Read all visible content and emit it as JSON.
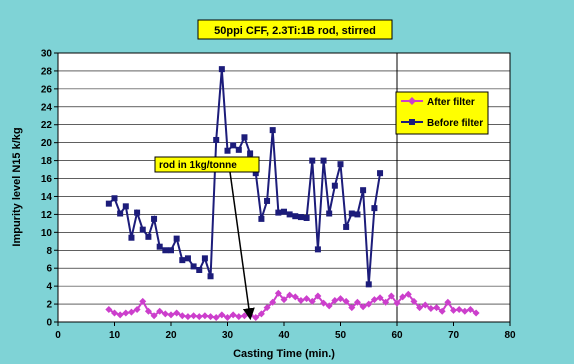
{
  "colors": {
    "background": "#7fd3d6",
    "plot_area": "#ffffff",
    "after_filter": "#cc3fcc",
    "before_filter": "#1c1c7a",
    "label_box": "#ffff00",
    "annotation_line": "#000000"
  },
  "chart_data": {
    "type": "line",
    "title": "50ppi CFF, 2.3Ti:1B rod, stirred",
    "xlabel": "Casting Time (min.)",
    "ylabel": "Impurity level N15 k/kg",
    "xlim": [
      0,
      80
    ],
    "ylim": [
      0,
      30
    ],
    "x_ticks": [
      "0",
      "10",
      "20",
      "30",
      "40",
      "50",
      "60",
      "70",
      "80"
    ],
    "y_ticks": [
      "0",
      "2",
      "4",
      "6",
      "8",
      "10",
      "12",
      "14",
      "16",
      "18",
      "20",
      "22",
      "24",
      "26",
      "28",
      "30"
    ],
    "grid": "horizontal",
    "legend_position": "right",
    "series": [
      {
        "name": "After filter",
        "marker": "diamond",
        "points": [
          [
            9,
            1.4
          ],
          [
            10,
            1.0
          ],
          [
            11,
            0.8
          ],
          [
            12,
            1.0
          ],
          [
            13,
            1.1
          ],
          [
            14,
            1.4
          ],
          [
            15,
            2.3
          ],
          [
            16,
            1.2
          ],
          [
            17,
            0.7
          ],
          [
            18,
            1.2
          ],
          [
            19,
            0.9
          ],
          [
            20,
            0.8
          ],
          [
            21,
            1.0
          ],
          [
            22,
            0.7
          ],
          [
            23,
            0.6
          ],
          [
            24,
            0.7
          ],
          [
            25,
            0.6
          ],
          [
            26,
            0.7
          ],
          [
            27,
            0.6
          ],
          [
            28,
            0.5
          ],
          [
            29,
            0.8
          ],
          [
            30,
            0.5
          ],
          [
            31,
            0.8
          ],
          [
            32,
            0.6
          ],
          [
            33,
            0.7
          ],
          [
            34,
            0.8
          ],
          [
            35,
            0.5
          ],
          [
            36,
            0.9
          ],
          [
            37,
            1.6
          ],
          [
            38,
            2.2
          ],
          [
            39,
            3.2
          ],
          [
            40,
            2.5
          ],
          [
            41,
            3.0
          ],
          [
            42,
            2.8
          ],
          [
            43,
            2.4
          ],
          [
            44,
            2.6
          ],
          [
            45,
            2.3
          ],
          [
            46,
            2.9
          ],
          [
            47,
            2.1
          ],
          [
            48,
            1.8
          ],
          [
            49,
            2.4
          ],
          [
            50,
            2.6
          ],
          [
            51,
            2.3
          ],
          [
            52,
            1.6
          ],
          [
            53,
            2.2
          ],
          [
            54,
            1.7
          ],
          [
            55,
            2.0
          ],
          [
            56,
            2.5
          ],
          [
            57,
            2.7
          ],
          [
            58,
            2.2
          ],
          [
            59,
            2.9
          ],
          [
            60,
            2.1
          ],
          [
            61,
            2.8
          ],
          [
            62,
            3.1
          ],
          [
            63,
            2.3
          ],
          [
            64,
            1.6
          ],
          [
            65,
            1.9
          ],
          [
            66,
            1.5
          ],
          [
            67,
            1.6
          ],
          [
            68,
            1.2
          ],
          [
            69,
            2.2
          ],
          [
            70,
            1.3
          ],
          [
            71,
            1.4
          ],
          [
            72,
            1.2
          ],
          [
            73,
            1.4
          ],
          [
            74,
            1.0
          ]
        ]
      },
      {
        "name": "Before filter",
        "marker": "square",
        "points": [
          [
            9,
            13.2
          ],
          [
            10,
            13.8
          ],
          [
            11,
            12.1
          ],
          [
            12,
            12.9
          ],
          [
            13,
            9.4
          ],
          [
            14,
            12.2
          ],
          [
            15,
            10.3
          ],
          [
            16,
            9.5
          ],
          [
            17,
            11.5
          ],
          [
            18,
            8.4
          ],
          [
            19,
            8.0
          ],
          [
            20,
            8.0
          ],
          [
            21,
            9.3
          ],
          [
            22,
            6.9
          ],
          [
            23,
            7.1
          ],
          [
            24,
            6.2
          ],
          [
            25,
            5.8
          ],
          [
            26,
            7.1
          ],
          [
            27,
            5.1
          ],
          [
            28,
            20.3
          ],
          [
            29,
            28.2
          ],
          [
            30,
            19.1
          ],
          [
            31,
            19.7
          ],
          [
            32,
            19.2
          ],
          [
            33,
            20.6
          ],
          [
            34,
            18.8
          ],
          [
            35,
            16.6
          ],
          [
            36,
            11.5
          ],
          [
            37,
            13.5
          ],
          [
            38,
            21.4
          ],
          [
            39,
            12.2
          ],
          [
            40,
            12.3
          ],
          [
            41,
            12.0
          ],
          [
            42,
            11.8
          ],
          [
            43,
            11.7
          ],
          [
            44,
            11.6
          ],
          [
            45,
            18.0
          ],
          [
            46,
            8.1
          ],
          [
            47,
            18.0
          ],
          [
            48,
            12.1
          ],
          [
            49,
            15.2
          ],
          [
            50,
            17.6
          ],
          [
            51,
            10.6
          ],
          [
            52,
            12.1
          ],
          [
            53,
            12.0
          ],
          [
            54,
            14.7
          ],
          [
            55,
            4.2
          ],
          [
            56,
            12.7
          ],
          [
            57,
            16.6
          ]
        ]
      }
    ],
    "annotations": [
      {
        "text": "rod in 1kg/tonne",
        "arrow_to": [
          34,
          0.2
        ]
      }
    ],
    "vertical_marker_x": 60
  }
}
